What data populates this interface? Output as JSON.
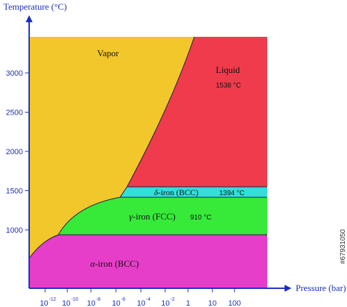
{
  "chart_data": {
    "type": "area",
    "title": "",
    "xlabel": "Pressure (bar)",
    "ylabel": "Temperature (°C)",
    "x_scale": "log",
    "x_ticks": [
      {
        "exp": -12,
        "base": "10",
        "sup": "-12"
      },
      {
        "exp": -10,
        "base": "10",
        "sup": "-10"
      },
      {
        "exp": -8,
        "base": "10",
        "sup": "-8"
      },
      {
        "exp": -6,
        "base": "10",
        "sup": "-6"
      },
      {
        "exp": -4,
        "base": "10",
        "sup": "-4"
      },
      {
        "exp": -2,
        "base": "10",
        "sup": "-2"
      },
      {
        "exp": 0,
        "base": "1",
        "sup": ""
      },
      {
        "exp": 1,
        "base": "10",
        "sup": ""
      },
      {
        "exp": 2,
        "base": "100",
        "sup": ""
      }
    ],
    "y_ticks": [
      1000,
      1500,
      2000,
      2500,
      3000
    ],
    "regions": [
      {
        "name": "Vapor",
        "label": "Vapor",
        "color": "#f2c72b"
      },
      {
        "name": "Liquid",
        "label": "Liquid",
        "color": "#ef3b4c",
        "annotation": "1538 °C"
      },
      {
        "name": "delta-iron",
        "greek": "δ",
        "label": "-iron (BCC)",
        "color": "#2fe0dc",
        "annotation": "1394 °C"
      },
      {
        "name": "gamma-iron",
        "greek": "γ",
        "label": "-iron (FCC)",
        "color": "#37ea3a",
        "annotation": "910 °C"
      },
      {
        "name": "alpha-iron",
        "greek": "α",
        "label": "-iron (BCC)",
        "color": "#e63ec8"
      }
    ],
    "phase_boundaries": {
      "alpha_gamma_C": 910,
      "gamma_delta_C": 1394,
      "delta_liquid_C": 1538
    }
  },
  "watermark": "#67931050"
}
